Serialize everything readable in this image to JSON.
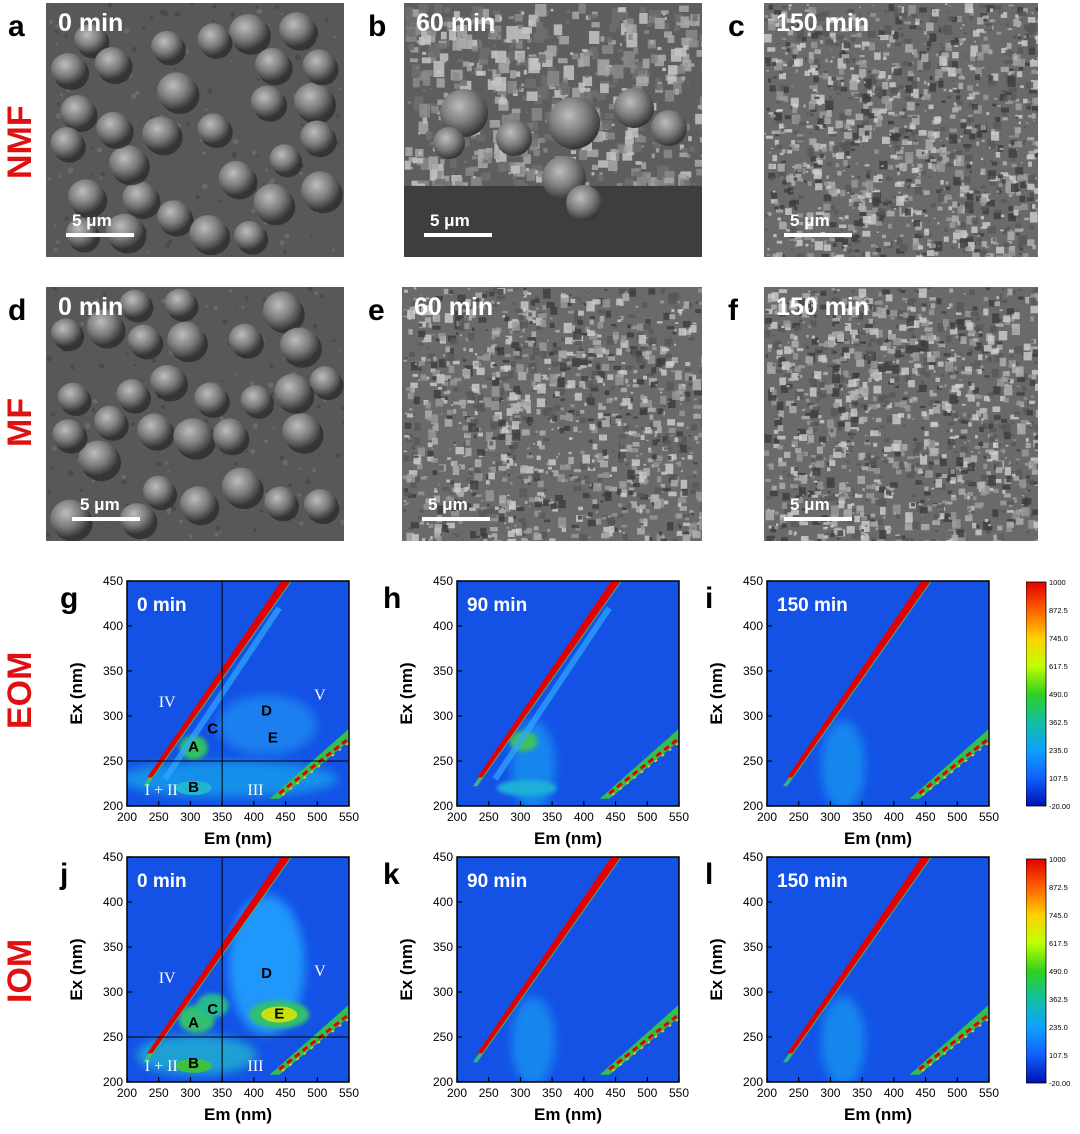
{
  "rows": {
    "nmf": "NMF",
    "mf": "MF",
    "eom": "EOM",
    "iom": "IOM"
  },
  "sem_panels": [
    {
      "letter": "a",
      "time": "0 min",
      "scale": "5 μm",
      "kind": "cells"
    },
    {
      "letter": "b",
      "time": "60 min",
      "scale": "5 μm",
      "kind": "partial"
    },
    {
      "letter": "c",
      "time": "150 min",
      "scale": "5 μm",
      "kind": "debris"
    },
    {
      "letter": "d",
      "time": "0 min",
      "scale": "5 μm",
      "kind": "cells"
    },
    {
      "letter": "e",
      "time": "60 min",
      "scale": "5 μm",
      "kind": "debris"
    },
    {
      "letter": "f",
      "time": "150 min",
      "scale": "5 μm",
      "kind": "debris"
    }
  ],
  "eem_axes": {
    "xlabel": "Em (nm)",
    "ylabel": "Ex (nm)",
    "xticks": [
      "200",
      "250",
      "300",
      "350",
      "400",
      "450",
      "500",
      "550"
    ],
    "yticks": [
      "200",
      "250",
      "300",
      "350",
      "400",
      "450"
    ],
    "xlim": [
      200,
      550
    ],
    "ylim": [
      200,
      450
    ]
  },
  "eem_panels": [
    {
      "letter": "g",
      "time": "0 min",
      "regions": true,
      "intensity": "medium"
    },
    {
      "letter": "h",
      "time": "90 min",
      "regions": false,
      "intensity": "low"
    },
    {
      "letter": "i",
      "time": "150 min",
      "regions": false,
      "intensity": "low"
    },
    {
      "letter": "j",
      "time": "0 min",
      "regions": true,
      "intensity": "high"
    },
    {
      "letter": "k",
      "time": "90 min",
      "regions": false,
      "intensity": "low"
    },
    {
      "letter": "l",
      "time": "150 min",
      "regions": false,
      "intensity": "low"
    }
  ],
  "region_labels": {
    "I_II": "I + II",
    "III": "III",
    "IV": "IV",
    "V": "V",
    "A": "A",
    "B": "B",
    "C": "C",
    "D": "D",
    "E": "E"
  },
  "region_dividers": {
    "em": 350,
    "ex": 250
  },
  "colorbar": {
    "ticks": [
      "1000",
      "872.5",
      "745.0",
      "617.5",
      "490.0",
      "362.5",
      "235.0",
      "107.5",
      "-20.00"
    ],
    "colors": [
      "#e00000",
      "#ff6000",
      "#ffd000",
      "#c0ff00",
      "#30d020",
      "#10c0a0",
      "#10a0ff",
      "#1060ff",
      "#0010b0"
    ]
  },
  "chart_data": [
    {
      "type": "heatmap",
      "title": "0 min",
      "xlabel": "Em (nm)",
      "ylabel": "Ex (nm)",
      "xlim": [
        200,
        550
      ],
      "ylim": [
        200,
        450
      ],
      "peaks": [
        {
          "label": "A",
          "em": 305,
          "ex": 265
        },
        {
          "label": "B",
          "em": 305,
          "ex": 220
        },
        {
          "label": "C",
          "em": 335,
          "ex": 285
        },
        {
          "label": "D",
          "em": 420,
          "ex": 305
        },
        {
          "label": "E",
          "em": 430,
          "ex": 275
        }
      ]
    },
    {
      "type": "heatmap",
      "title": "90 min",
      "xlabel": "Em (nm)",
      "ylabel": "Ex (nm)",
      "xlim": [
        200,
        550
      ],
      "ylim": [
        200,
        450
      ]
    },
    {
      "type": "heatmap",
      "title": "150 min",
      "xlabel": "Em (nm)",
      "ylabel": "Ex (nm)",
      "xlim": [
        200,
        550
      ],
      "ylim": [
        200,
        450
      ]
    },
    {
      "type": "heatmap",
      "title": "0 min",
      "xlabel": "Em (nm)",
      "ylabel": "Ex (nm)",
      "xlim": [
        200,
        550
      ],
      "ylim": [
        200,
        450
      ],
      "peaks": [
        {
          "label": "A",
          "em": 305,
          "ex": 265
        },
        {
          "label": "B",
          "em": 305,
          "ex": 220
        },
        {
          "label": "C",
          "em": 335,
          "ex": 280
        },
        {
          "label": "D",
          "em": 420,
          "ex": 320
        },
        {
          "label": "E",
          "em": 440,
          "ex": 275
        }
      ]
    },
    {
      "type": "heatmap",
      "title": "90 min",
      "xlabel": "Em (nm)",
      "ylabel": "Ex (nm)",
      "xlim": [
        200,
        550
      ],
      "ylim": [
        200,
        450
      ]
    },
    {
      "type": "heatmap",
      "title": "150 min",
      "xlabel": "Em (nm)",
      "ylabel": "Ex (nm)",
      "xlim": [
        200,
        550
      ],
      "ylim": [
        200,
        450
      ]
    }
  ]
}
